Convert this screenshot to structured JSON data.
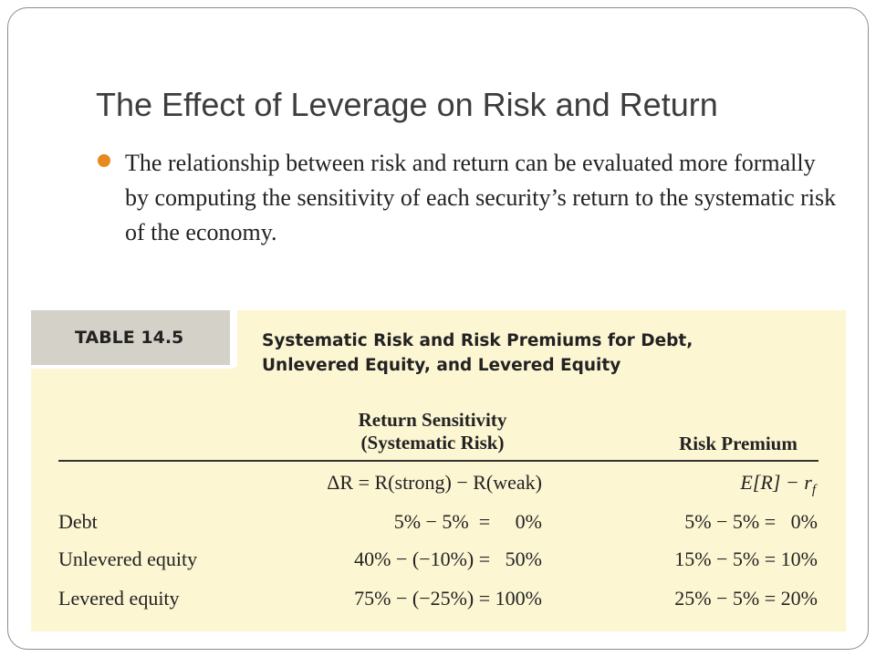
{
  "slide": {
    "title": "The Effect of Leverage on Risk and Return",
    "bullet": "The relationship between risk and return can be evaluated more formally by computing the sensitivity of each security’s return to the systematic risk of the economy."
  },
  "table": {
    "tag": "TABLE 14.5",
    "caption_line1": "Systematic Risk and Risk Premiums for Debt,",
    "caption_line2": "Unlevered Equity, and Levered Equity",
    "col1_header_line1": "Return Sensitivity",
    "col1_header_line2": "(Systematic Risk)",
    "col2_header": "Risk Premium",
    "col1_formula": "ΔR = R(strong) − R(weak)",
    "col2_formula_main": "E[R] − r",
    "col2_formula_sub": "f",
    "rows": [
      {
        "label": "Debt",
        "sensitivity": "5% − 5%  =     0%",
        "premium": "5% − 5% =   0%"
      },
      {
        "label": "Unlevered equity",
        "sensitivity": "40% − (−10%) =   50%",
        "premium": "15% − 5% = 10%"
      },
      {
        "label": "Levered equity",
        "sensitivity": "75% − (−25%) = 100%",
        "premium": "25% − 5% = 20%"
      }
    ]
  },
  "colors": {
    "accent_bullet": "#e8891f",
    "table_background": "#fdf6d3",
    "tag_background": "#d4d2c8"
  }
}
